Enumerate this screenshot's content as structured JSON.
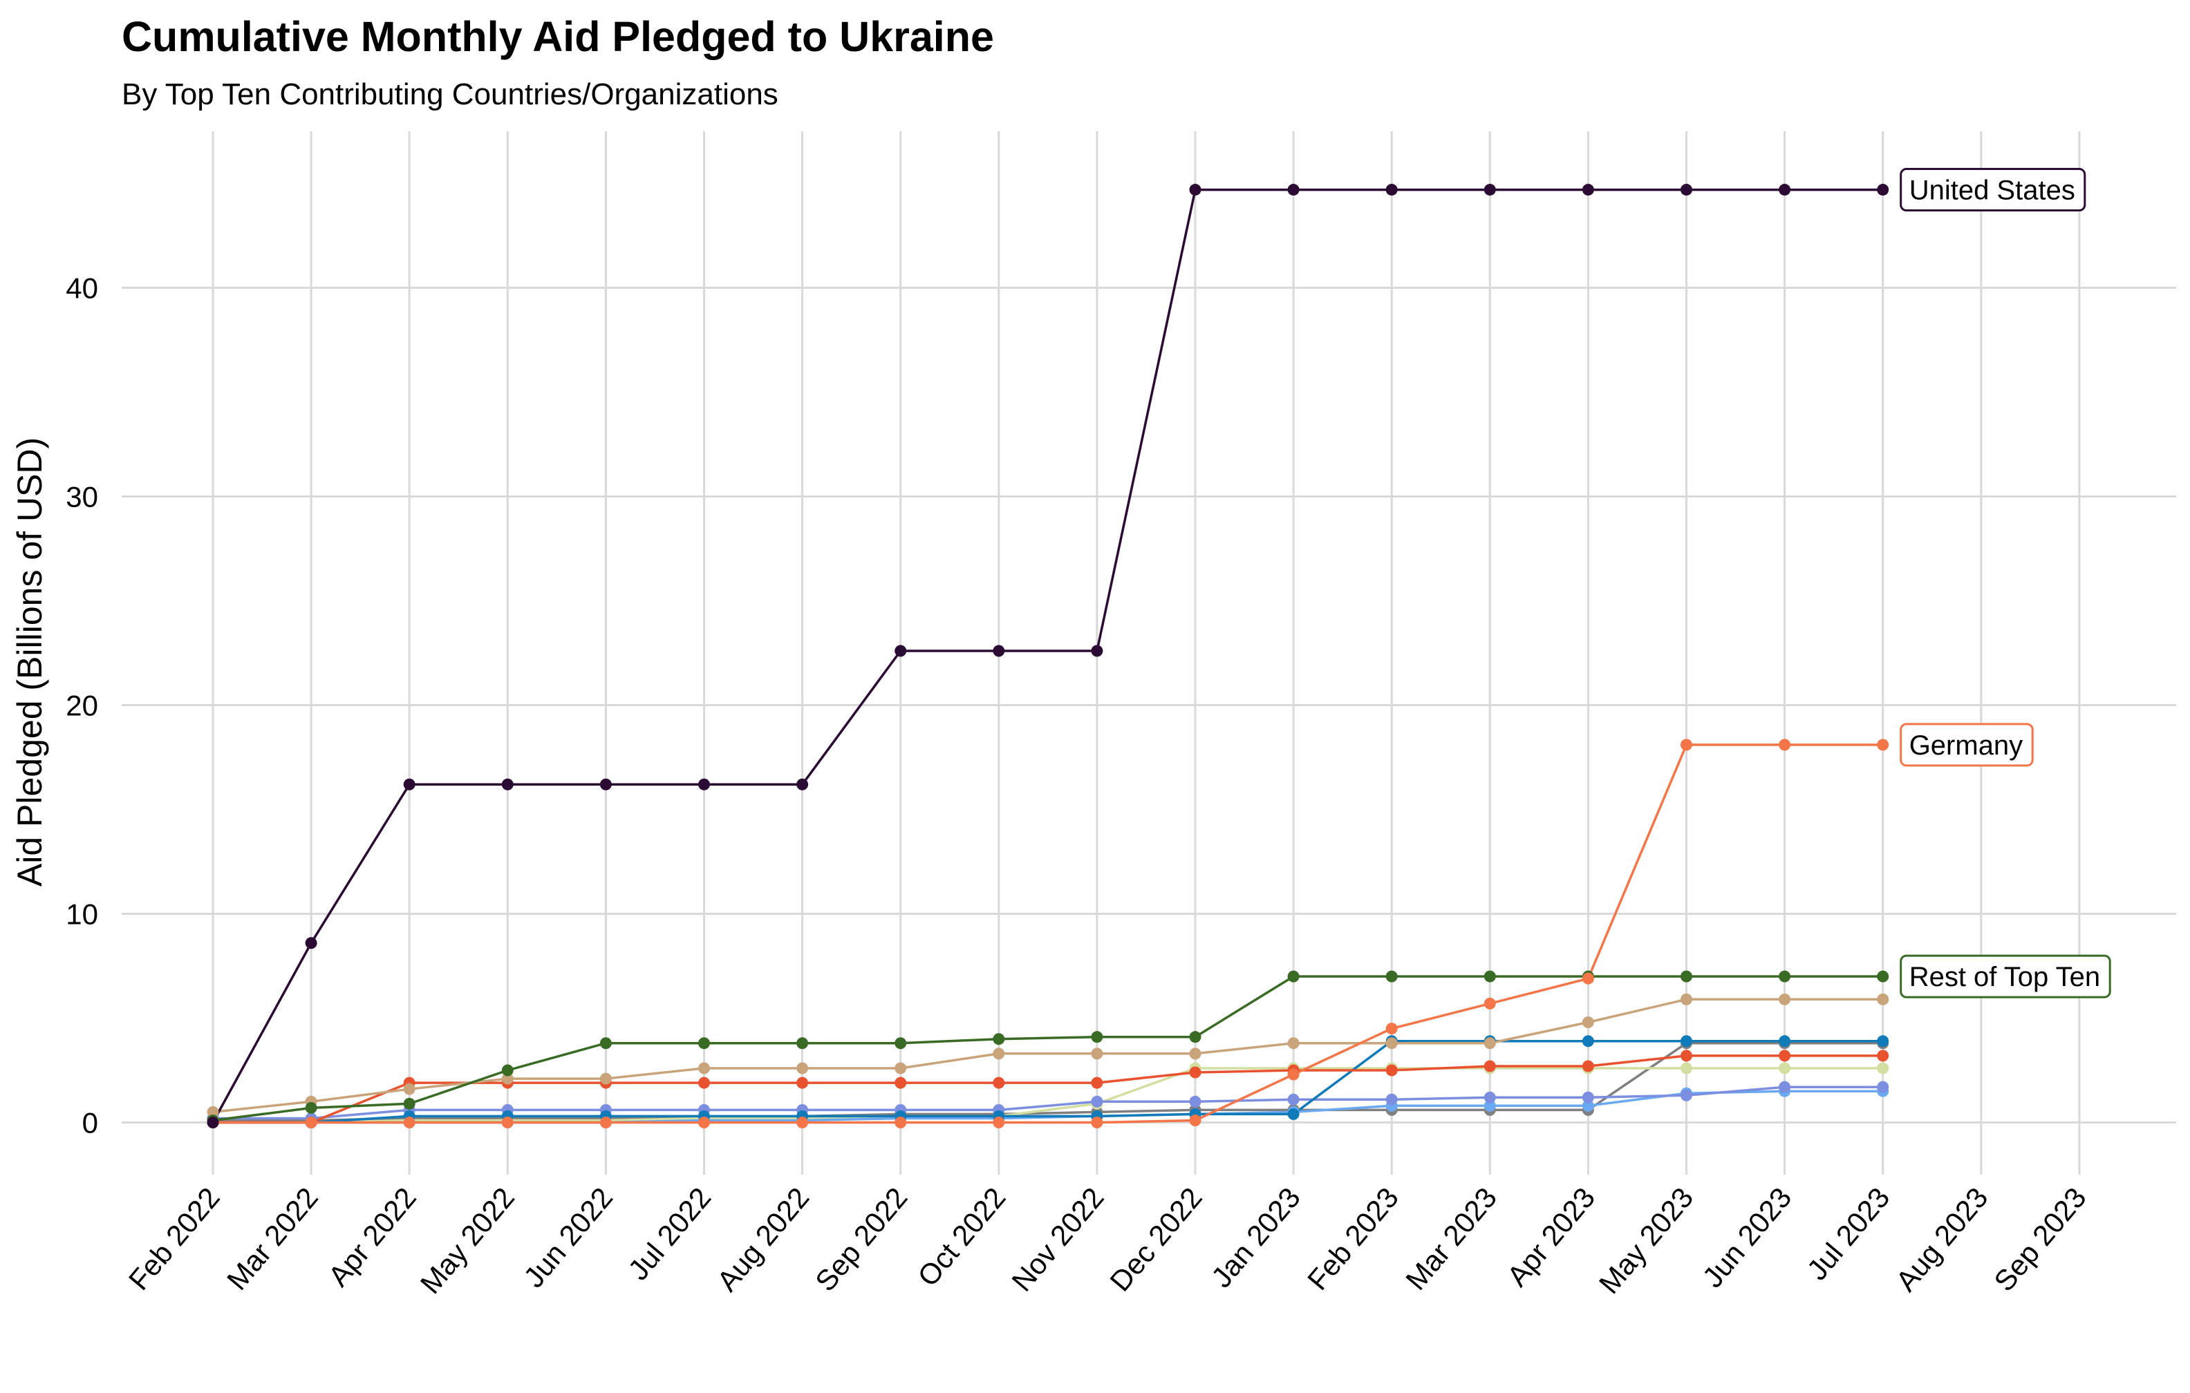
{
  "chart_data": {
    "type": "line",
    "title": "Cumulative Monthly Aid Pledged to Ukraine",
    "subtitle": "By Top Ten Contributing Countries/Organizations",
    "xlabel": "",
    "ylabel": "Aid Pledged (Billions of USD)",
    "ylim": [
      -2.5,
      47.5
    ],
    "yticks": [
      0,
      10,
      20,
      30,
      40
    ],
    "grid": true,
    "legend": "none",
    "x": [
      "Feb 2022",
      "Mar 2022",
      "Apr 2022",
      "May 2022",
      "Jun 2022",
      "Jul 2022",
      "Aug 2022",
      "Sep 2022",
      "Oct 2022",
      "Nov 2022",
      "Dec 2022",
      "Jan 2023",
      "Feb 2023",
      "Mar 2023",
      "Apr 2023",
      "May 2023",
      "Jun 2023",
      "Jul 2023",
      "Aug 2023",
      "Sep 2023"
    ],
    "series": [
      {
        "name": "",
        "color": "#7f7f7f",
        "values": [
          0.1,
          0.1,
          0.2,
          0.2,
          0.2,
          0.2,
          0.3,
          0.4,
          0.4,
          0.5,
          0.6,
          0.6,
          0.6,
          0.6,
          0.6,
          3.8,
          3.8,
          3.8,
          null,
          null
        ]
      },
      {
        "name": "",
        "color": "#d2dfa0",
        "values": [
          0.0,
          0.0,
          0.1,
          0.1,
          0.1,
          0.2,
          0.2,
          0.2,
          0.3,
          0.9,
          2.6,
          2.6,
          2.6,
          2.6,
          2.6,
          2.6,
          2.6,
          2.6,
          null,
          null
        ]
      },
      {
        "name": "",
        "color": "#6aa9f2",
        "values": [
          0.0,
          0.0,
          0.0,
          0.0,
          0.0,
          0.1,
          0.1,
          0.2,
          0.2,
          0.3,
          0.4,
          0.5,
          0.8,
          0.8,
          0.8,
          1.4,
          1.5,
          1.5,
          null,
          null
        ]
      },
      {
        "name": "",
        "color": "#7b8ee0",
        "values": [
          0.2,
          0.2,
          0.6,
          0.6,
          0.6,
          0.6,
          0.6,
          0.6,
          0.6,
          1.0,
          1.0,
          1.1,
          1.1,
          1.2,
          1.2,
          1.3,
          1.7,
          1.7,
          null,
          null
        ]
      },
      {
        "name": "",
        "color": "#117ab8",
        "values": [
          0.0,
          0.0,
          0.3,
          0.3,
          0.3,
          0.3,
          0.3,
          0.3,
          0.3,
          0.3,
          0.4,
          0.4,
          3.9,
          3.9,
          3.9,
          3.9,
          3.9,
          3.9,
          null,
          null
        ]
      },
      {
        "name": "",
        "color": "#e8522e",
        "values": [
          0.0,
          0.0,
          1.9,
          1.9,
          1.9,
          1.9,
          1.9,
          1.9,
          1.9,
          1.9,
          2.4,
          2.5,
          2.5,
          2.7,
          2.7,
          3.2,
          3.2,
          3.2,
          null,
          null
        ]
      },
      {
        "name": "",
        "color": "#c9a47a",
        "values": [
          0.5,
          1.0,
          1.6,
          2.1,
          2.1,
          2.6,
          2.6,
          2.6,
          3.3,
          3.3,
          3.3,
          3.8,
          3.8,
          3.8,
          4.8,
          5.9,
          5.9,
          5.9,
          null,
          null
        ]
      },
      {
        "name": "Rest of Top Ten",
        "color": "#3a6b25",
        "values": [
          0.1,
          0.7,
          0.9,
          2.5,
          3.8,
          3.8,
          3.8,
          3.8,
          4.0,
          4.1,
          4.1,
          7.0,
          7.0,
          7.0,
          7.0,
          7.0,
          7.0,
          7.0,
          null,
          null
        ]
      },
      {
        "name": "Germany",
        "color": "#f47547",
        "values": [
          0.0,
          0.0,
          0.0,
          0.0,
          0.0,
          0.0,
          0.0,
          0.0,
          0.0,
          0.0,
          0.1,
          2.3,
          4.5,
          5.7,
          6.9,
          18.1,
          18.1,
          18.1,
          null,
          null
        ]
      },
      {
        "name": "United States",
        "color": "#2b0a33",
        "values": [
          0.0,
          8.6,
          16.2,
          16.2,
          16.2,
          16.2,
          16.2,
          22.6,
          22.6,
          22.6,
          44.7,
          44.7,
          44.7,
          44.7,
          44.7,
          44.7,
          44.7,
          44.7,
          null,
          null
        ]
      }
    ]
  }
}
